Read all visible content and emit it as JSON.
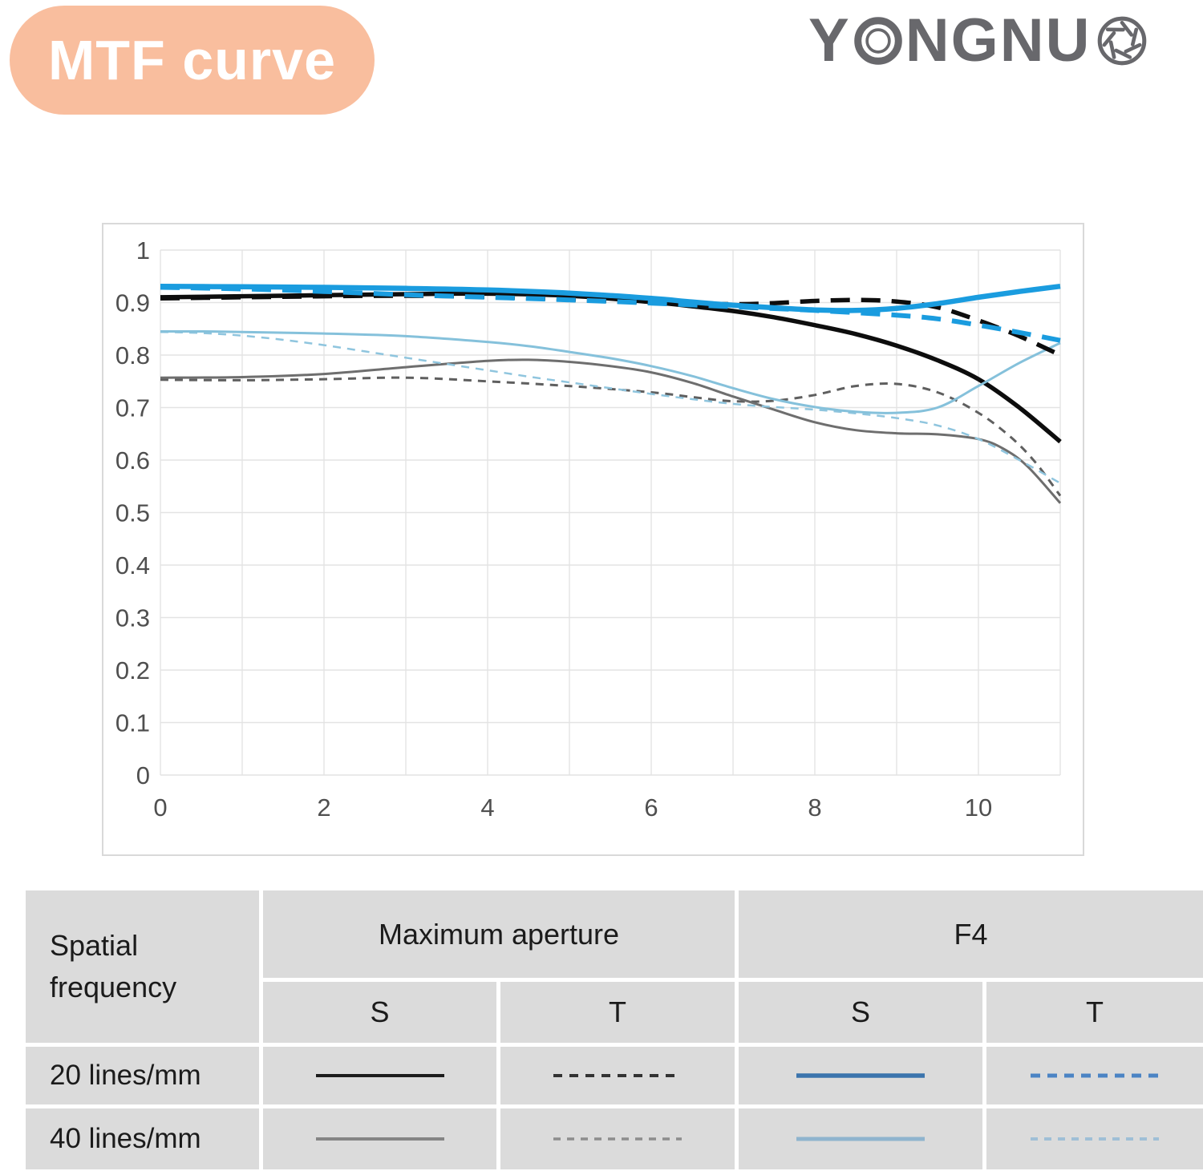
{
  "header": {
    "badge_label": "MTF curve",
    "badge_bg": "#F9BE9E",
    "badge_text_color": "#FFFFFF"
  },
  "logo": {
    "full_name": "YONGNUO",
    "prefix": "Y",
    "middle": "NGNU",
    "ring_o_icon": "lens-ring-icon",
    "aperture_icon": "aperture-icon",
    "color": "#68686C"
  },
  "chart_data": {
    "type": "line",
    "title": "MTF curve",
    "xlabel": "",
    "ylabel": "",
    "x_range": [
      0,
      11
    ],
    "y_range": [
      0,
      1
    ],
    "grid": true,
    "grid_color": "#E3E3E3",
    "axis_text_color": "#4F4F4F",
    "x_ticks": [
      {
        "label": "0",
        "t": 0
      },
      {
        "label": "2",
        "t": 2
      },
      {
        "label": "4",
        "t": 4
      },
      {
        "label": "6",
        "t": 6
      },
      {
        "label": "8",
        "t": 8
      },
      {
        "label": "10",
        "t": 10
      }
    ],
    "y_ticks": [
      {
        "label": "1",
        "v": 1.0
      },
      {
        "label": "0.9",
        "v": 0.9
      },
      {
        "label": "0.8",
        "v": 0.8
      },
      {
        "label": "0.7",
        "v": 0.7
      },
      {
        "label": "0.6",
        "v": 0.6
      },
      {
        "label": "0.5",
        "v": 0.5
      },
      {
        "label": "0.4",
        "v": 0.4
      },
      {
        "label": "0.3",
        "v": 0.3
      },
      {
        "label": "0.2",
        "v": 0.2
      },
      {
        "label": "0.1",
        "v": 0.1
      },
      {
        "label": "0",
        "v": 0.0
      }
    ],
    "series": [
      {
        "key": "max_t_40",
        "name": "Maximum aperture T 40 lines/mm",
        "aperture": "Maximum aperture",
        "orientation": "T",
        "frequency": "40 lines/mm",
        "color": "#5F5F5F",
        "width": 3,
        "dash": "10 8",
        "points": [
          [
            0,
            0.753
          ],
          [
            1,
            0.752
          ],
          [
            2,
            0.754
          ],
          [
            3,
            0.757
          ],
          [
            4,
            0.75
          ],
          [
            5,
            0.741
          ],
          [
            6,
            0.729
          ],
          [
            6.5,
            0.72
          ],
          [
            7,
            0.712
          ],
          [
            7.5,
            0.713
          ],
          [
            8,
            0.724
          ],
          [
            8.5,
            0.741
          ],
          [
            9,
            0.745
          ],
          [
            9.5,
            0.729
          ],
          [
            10,
            0.69
          ],
          [
            10.4,
            0.643
          ],
          [
            10.7,
            0.595
          ],
          [
            11,
            0.532
          ]
        ]
      },
      {
        "key": "max_s_40",
        "name": "Maximum aperture S 40 lines/mm",
        "aperture": "Maximum aperture",
        "orientation": "S",
        "frequency": "40 lines/mm",
        "color": "#6E6E6E",
        "width": 3,
        "dash": "",
        "points": [
          [
            0,
            0.757
          ],
          [
            1,
            0.758
          ],
          [
            2,
            0.764
          ],
          [
            3,
            0.777
          ],
          [
            4,
            0.789
          ],
          [
            4.5,
            0.791
          ],
          [
            5,
            0.787
          ],
          [
            5.5,
            0.779
          ],
          [
            6,
            0.767
          ],
          [
            6.5,
            0.747
          ],
          [
            7,
            0.721
          ],
          [
            7.5,
            0.696
          ],
          [
            8,
            0.672
          ],
          [
            8.5,
            0.657
          ],
          [
            9,
            0.651
          ],
          [
            9.5,
            0.649
          ],
          [
            10,
            0.64
          ],
          [
            10.3,
            0.622
          ],
          [
            10.6,
            0.588
          ],
          [
            11,
            0.518
          ]
        ]
      },
      {
        "key": "f4_t_40",
        "name": "F4 T 40 lines/mm",
        "aperture": "F4",
        "orientation": "T",
        "frequency": "40 lines/mm",
        "color": "#8FC5DE",
        "width": 2.5,
        "dash": "10 8",
        "points": [
          [
            0,
            0.844
          ],
          [
            0.5,
            0.842
          ],
          [
            1,
            0.837
          ],
          [
            1.5,
            0.829
          ],
          [
            2,
            0.819
          ],
          [
            2.5,
            0.807
          ],
          [
            3,
            0.795
          ],
          [
            3.5,
            0.783
          ],
          [
            4,
            0.771
          ],
          [
            4.5,
            0.759
          ],
          [
            5,
            0.748
          ],
          [
            5.5,
            0.737
          ],
          [
            6,
            0.726
          ],
          [
            6.5,
            0.716
          ],
          [
            7,
            0.707
          ],
          [
            7.5,
            0.701
          ],
          [
            8,
            0.696
          ],
          [
            8.5,
            0.689
          ],
          [
            9,
            0.68
          ],
          [
            9.5,
            0.666
          ],
          [
            10,
            0.64
          ],
          [
            10.5,
            0.6
          ],
          [
            11,
            0.556
          ]
        ]
      },
      {
        "key": "max_s_20",
        "name": "Maximum aperture S 20 lines/mm",
        "aperture": "Maximum aperture",
        "orientation": "S",
        "frequency": "20 lines/mm",
        "color": "#0D0D0D",
        "width": 5.5,
        "dash": "",
        "points": [
          [
            0,
            0.91
          ],
          [
            1,
            0.912
          ],
          [
            2,
            0.914
          ],
          [
            3,
            0.916
          ],
          [
            4,
            0.917
          ],
          [
            5,
            0.913
          ],
          [
            6,
            0.901
          ],
          [
            6.5,
            0.893
          ],
          [
            7,
            0.884
          ],
          [
            7.5,
            0.872
          ],
          [
            8,
            0.857
          ],
          [
            8.5,
            0.84
          ],
          [
            9,
            0.818
          ],
          [
            9.5,
            0.79
          ],
          [
            10,
            0.754
          ],
          [
            10.5,
            0.7
          ],
          [
            11,
            0.635
          ]
        ]
      },
      {
        "key": "f4_s_40",
        "name": "F4 S 40 lines/mm",
        "aperture": "F4",
        "orientation": "S",
        "frequency": "40 lines/mm",
        "color": "#85C1DB",
        "width": 3,
        "dash": "",
        "points": [
          [
            0,
            0.845
          ],
          [
            0.5,
            0.845
          ],
          [
            1,
            0.844
          ],
          [
            2,
            0.841
          ],
          [
            3,
            0.836
          ],
          [
            4,
            0.825
          ],
          [
            4.5,
            0.817
          ],
          [
            5,
            0.806
          ],
          [
            5.5,
            0.794
          ],
          [
            6,
            0.779
          ],
          [
            6.5,
            0.76
          ],
          [
            7,
            0.737
          ],
          [
            7.5,
            0.716
          ],
          [
            8,
            0.701
          ],
          [
            8.5,
            0.692
          ],
          [
            9,
            0.69
          ],
          [
            9.5,
            0.7
          ],
          [
            10,
            0.741
          ],
          [
            10.5,
            0.785
          ],
          [
            11,
            0.823
          ]
        ]
      },
      {
        "key": "max_t_20",
        "name": "Maximum aperture T 20 lines/mm",
        "aperture": "Maximum aperture",
        "orientation": "T",
        "frequency": "20 lines/mm",
        "color": "#0D0D0D",
        "width": 5.5,
        "dash": "24 14",
        "points": [
          [
            0,
            0.908
          ],
          [
            1,
            0.91
          ],
          [
            2,
            0.912
          ],
          [
            3,
            0.913
          ],
          [
            4,
            0.911
          ],
          [
            5,
            0.906
          ],
          [
            6,
            0.9
          ],
          [
            7,
            0.897
          ],
          [
            7.5,
            0.899
          ],
          [
            8,
            0.903
          ],
          [
            8.5,
            0.905
          ],
          [
            9,
            0.902
          ],
          [
            9.5,
            0.891
          ],
          [
            10,
            0.866
          ],
          [
            10.5,
            0.836
          ],
          [
            11,
            0.8
          ]
        ]
      },
      {
        "key": "f4_t_20",
        "name": "F4 T 20 lines/mm",
        "aperture": "F4",
        "orientation": "T",
        "frequency": "20 lines/mm",
        "color": "#1A9CDF",
        "width": 6,
        "dash": "24 14",
        "points": [
          [
            0,
            0.929
          ],
          [
            1,
            0.926
          ],
          [
            2,
            0.921
          ],
          [
            3,
            0.915
          ],
          [
            4,
            0.91
          ],
          [
            5,
            0.905
          ],
          [
            6,
            0.899
          ],
          [
            7,
            0.892
          ],
          [
            8,
            0.885
          ],
          [
            9,
            0.876
          ],
          [
            9.5,
            0.869
          ],
          [
            10,
            0.857
          ],
          [
            10.5,
            0.843
          ],
          [
            11,
            0.828
          ]
        ]
      },
      {
        "key": "f4_s_20",
        "name": "F4 S 20 lines/mm",
        "aperture": "F4",
        "orientation": "S",
        "frequency": "20 lines/mm",
        "color": "#1A9CDF",
        "width": 6.5,
        "dash": "",
        "points": [
          [
            0,
            0.931
          ],
          [
            1,
            0.93
          ],
          [
            2,
            0.929
          ],
          [
            3,
            0.927
          ],
          [
            4,
            0.924
          ],
          [
            5,
            0.918
          ],
          [
            6,
            0.908
          ],
          [
            6.5,
            0.901
          ],
          [
            7,
            0.895
          ],
          [
            7.5,
            0.89
          ],
          [
            8,
            0.886
          ],
          [
            8.5,
            0.885
          ],
          [
            9,
            0.889
          ],
          [
            9.5,
            0.898
          ],
          [
            10,
            0.91
          ],
          [
            10.5,
            0.921
          ],
          [
            11,
            0.931
          ]
        ]
      }
    ]
  },
  "legend_table": {
    "corner_label": "Spatial frequency",
    "groups": [
      {
        "label": "Maximum aperture",
        "cols": [
          "S",
          "T"
        ]
      },
      {
        "label": "F4",
        "cols": [
          "S",
          "T"
        ]
      }
    ],
    "rows": [
      {
        "label": "20 lines/mm",
        "sample_keys": [
          "max_s_20",
          "max_t_20",
          "f4_s_20",
          "f4_t_20"
        ]
      },
      {
        "label": "40 lines/mm",
        "sample_keys": [
          "max_s_40",
          "max_t_40",
          "f4_s_40",
          "f4_t_40"
        ]
      }
    ],
    "samples": {
      "max_s_20": {
        "color": "#1C1C1C",
        "width": 4,
        "dash": ""
      },
      "max_t_20": {
        "color": "#333333",
        "width": 4,
        "dash": "11 9"
      },
      "f4_s_20": {
        "color": "#3B74AD",
        "width": 5.5,
        "dash": ""
      },
      "f4_t_20": {
        "color": "#4B84C4",
        "width": 5,
        "dash": "12 9"
      },
      "max_s_40": {
        "color": "#858585",
        "width": 4,
        "dash": ""
      },
      "max_t_40": {
        "color": "#8D8D8D",
        "width": 3.5,
        "dash": "9 8"
      },
      "f4_s_40": {
        "color": "#8FB4CE",
        "width": 5,
        "dash": ""
      },
      "f4_t_40": {
        "color": "#9FBFD6",
        "width": 4,
        "dash": "9 8"
      }
    },
    "cell_bg": "#DBDBDB",
    "text_color": "#1B1B1B"
  }
}
